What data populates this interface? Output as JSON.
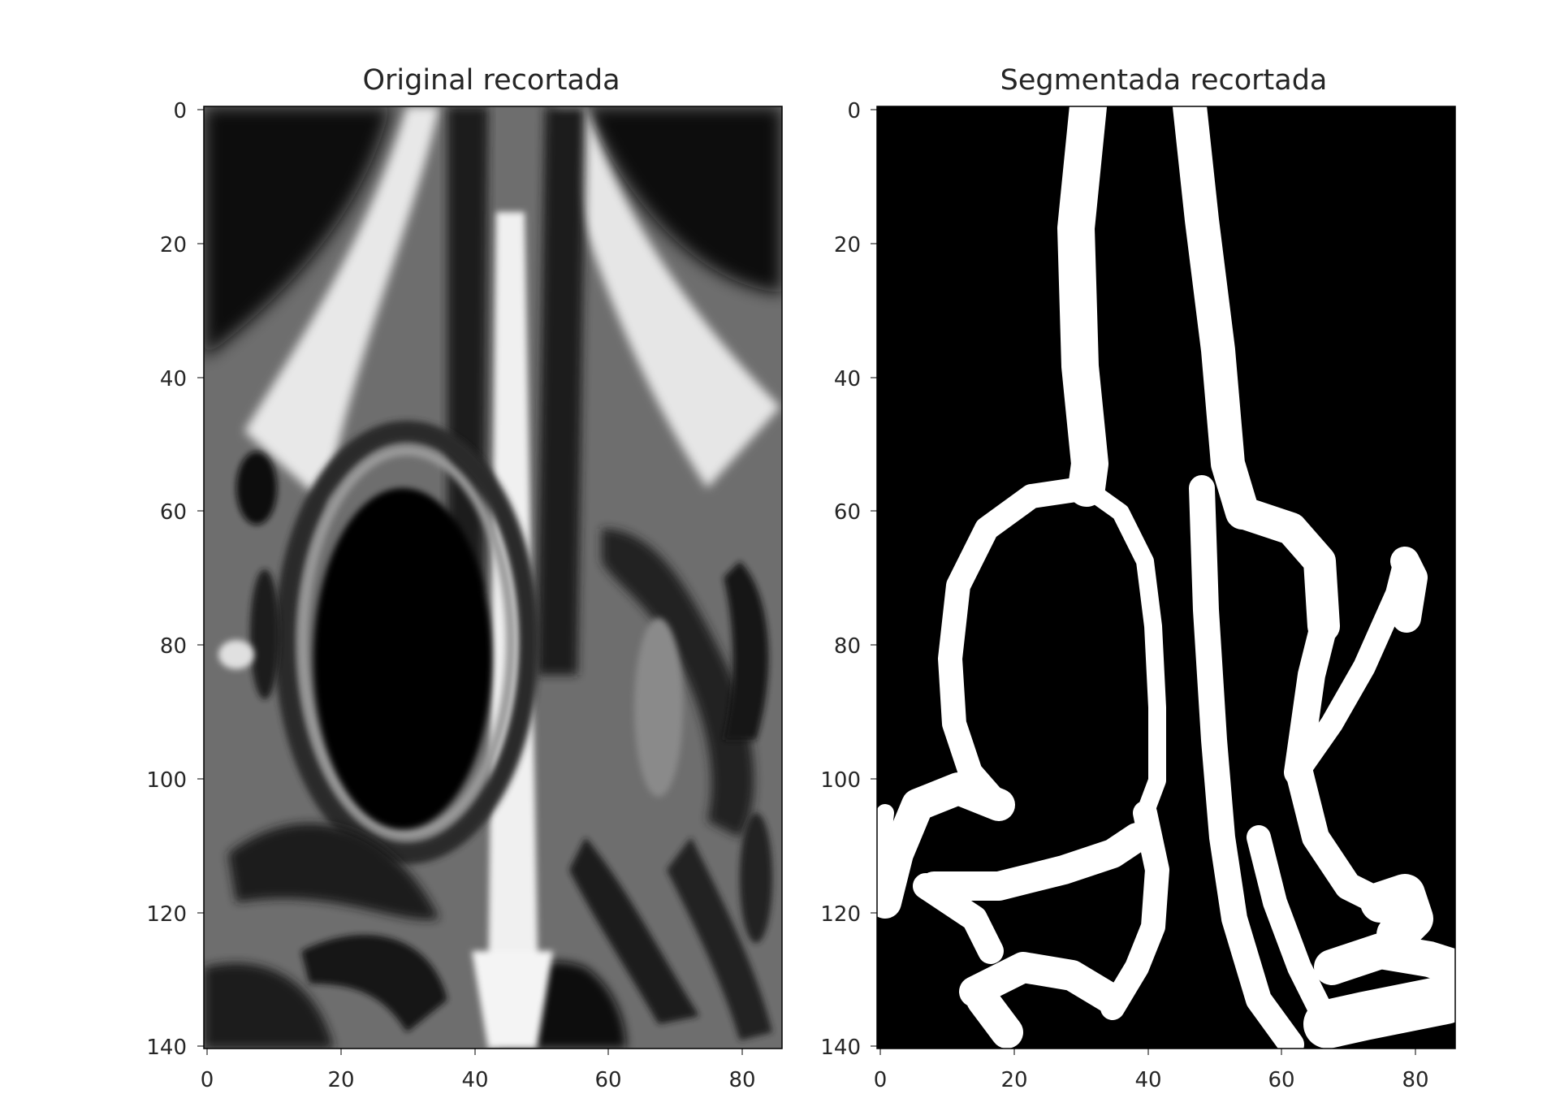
{
  "figure": {
    "panels": [
      {
        "title": "Original recortada",
        "image": "grayscale-ct-scan-crop",
        "xticks": [
          "0",
          "20",
          "40",
          "60",
          "80"
        ],
        "yticks": [
          "0",
          "20",
          "40",
          "60",
          "80",
          "100",
          "120",
          "140"
        ]
      },
      {
        "title": "Segmentada recortada",
        "image": "binary-segmentation-mask",
        "xticks": [
          "0",
          "20",
          "40",
          "60",
          "80"
        ],
        "yticks": [
          "0",
          "20",
          "40",
          "60",
          "80",
          "100",
          "120",
          "140"
        ]
      }
    ]
  },
  "colors": {
    "background": "#ffffff",
    "mask_foreground": "#ffffff",
    "mask_background": "#000000",
    "text": "#262626"
  }
}
